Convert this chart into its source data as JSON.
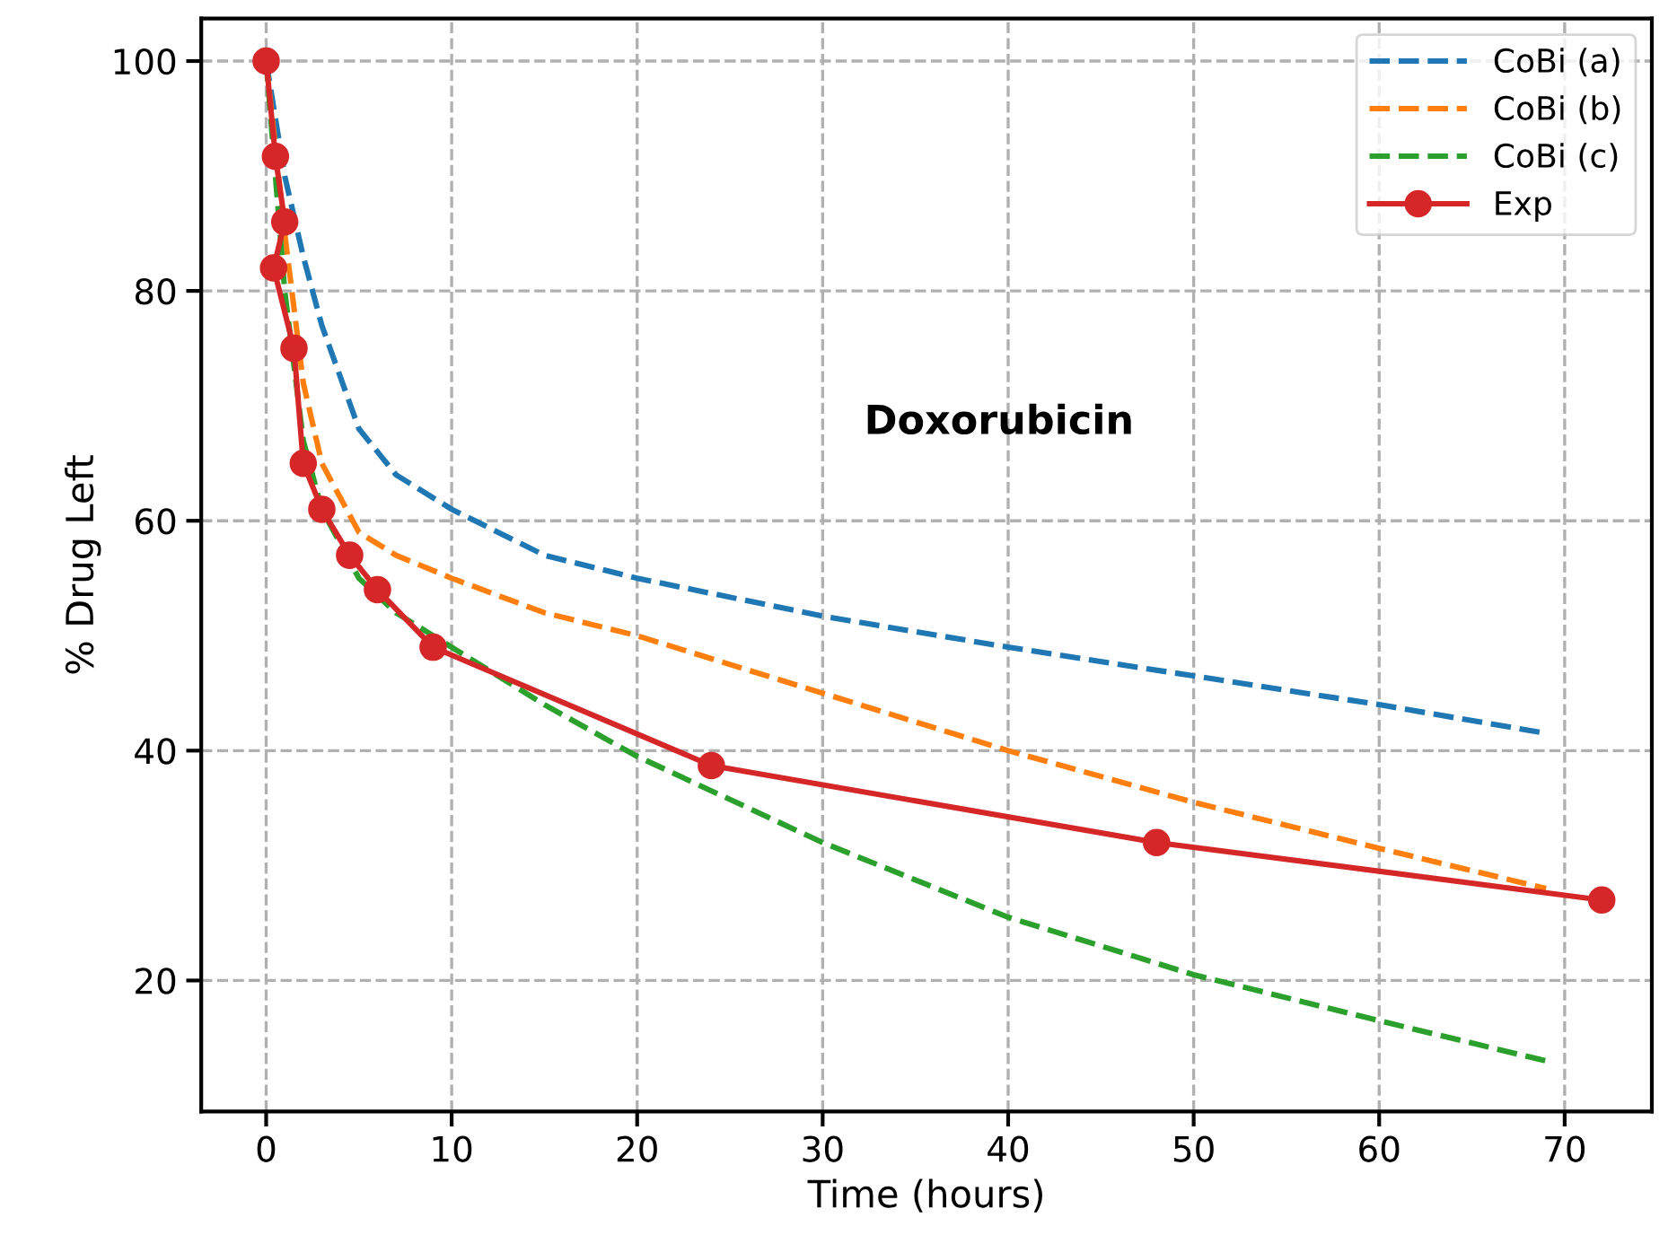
{
  "chart_data": {
    "type": "line",
    "xlabel": "Time (hours)",
    "ylabel": "% Drug Left",
    "annotations": [
      "Doxorubicin"
    ],
    "xlim": [
      -3.5,
      74.7
    ],
    "ylim": [
      8.6,
      103.7
    ],
    "xticks": [
      0,
      10,
      20,
      30,
      40,
      50,
      60,
      70
    ],
    "yticks": [
      20,
      40,
      60,
      80,
      100
    ],
    "grid": true,
    "legend": "top right",
    "series": [
      {
        "name": "CoBi (a)",
        "color": "#1f77b4",
        "line_style": "dashed",
        "marker": "none",
        "x": [
          0,
          1,
          2,
          3,
          5,
          7,
          10,
          15,
          20,
          30,
          40,
          50,
          60,
          69
        ],
        "values": [
          100,
          90,
          83,
          77,
          68,
          64,
          61,
          57,
          55,
          51.7,
          49,
          46.5,
          44,
          41.5
        ]
      },
      {
        "name": "CoBi (b)",
        "color": "#ff7f0e",
        "line_style": "dashed",
        "marker": "none",
        "x": [
          0,
          1,
          2,
          3,
          5,
          7,
          10,
          15,
          20,
          30,
          40,
          50,
          60,
          69
        ],
        "values": [
          100,
          85,
          72,
          65,
          59,
          57,
          55,
          52,
          50,
          45,
          40,
          35.5,
          31.5,
          28
        ]
      },
      {
        "name": "CoBi (c)",
        "color": "#2ca02c",
        "line_style": "dashed",
        "marker": "none",
        "x": [
          0,
          1,
          2,
          3,
          5,
          7,
          10,
          15,
          20,
          30,
          40,
          50,
          60,
          69
        ],
        "values": [
          100,
          80,
          67,
          61,
          55,
          52,
          49,
          44,
          39.5,
          32,
          25.5,
          20.5,
          16.5,
          13
        ]
      },
      {
        "name": "Exp",
        "color": "#d62728",
        "line_style": "solid",
        "marker": "circle",
        "x": [
          0,
          0.5,
          1,
          0.4,
          1.5,
          2,
          3,
          4.5,
          6,
          9,
          24,
          48,
          72
        ],
        "values": [
          100,
          91.7,
          86,
          82,
          75,
          65,
          61,
          57,
          54,
          49,
          38.7,
          32,
          27
        ]
      }
    ]
  }
}
